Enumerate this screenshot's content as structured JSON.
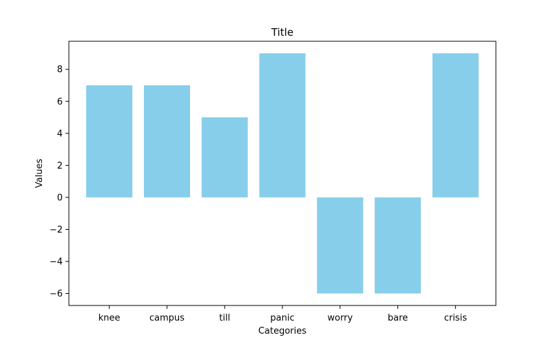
{
  "chart_data": {
    "type": "bar",
    "title": "Title",
    "xlabel": "Categories",
    "ylabel": "Values",
    "categories": [
      "knee",
      "campus",
      "till",
      "panic",
      "worry",
      "bare",
      "crisis"
    ],
    "values": [
      7,
      7,
      5,
      9,
      -6,
      -6,
      9
    ],
    "ylim": [
      -6.75,
      9.75
    ],
    "yticks": [
      -6,
      -4,
      -2,
      0,
      2,
      4,
      6,
      8
    ],
    "grid": false,
    "bar_color": "#87ceeb"
  }
}
